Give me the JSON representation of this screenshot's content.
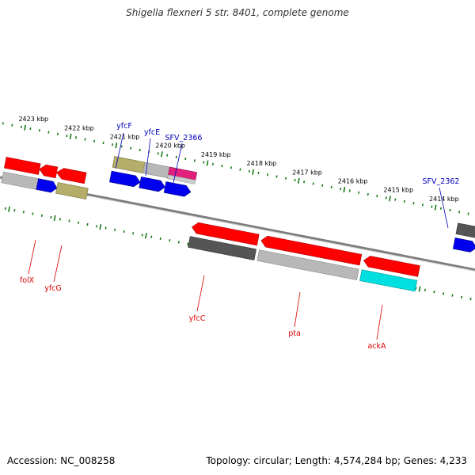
{
  "header": {
    "title": "Shigella flexneri 5 str. 8401, complete genome"
  },
  "footer": {
    "accession": "Accession: NC_008258",
    "summary": "Topology: circular; Length: 4,574,284 bp; Genes: 4,233"
  },
  "ruler": {
    "labels": [
      "2423 kbp",
      "2422 kbp",
      "2421 kbp",
      "2420 kbp",
      "2419 kbp",
      "2418 kbp",
      "2417 kbp",
      "2416 kbp",
      "2415 kbp",
      "2414 kbp"
    ]
  },
  "colors": {
    "backbone": "#808080",
    "ruler": "#1a7a1a",
    "red": "#ff0000",
    "dark_gray": "#555555",
    "light_gray": "#b0b0b0",
    "blue": "#0000ee",
    "olive": "#b5ad6a",
    "magenta": "#e0207a",
    "cyan": "#00e0e0",
    "label_blue": "#0000bb",
    "label_red": "#dd0000"
  },
  "gene_labels": {
    "folX": "folX",
    "yfcG": "yfcG",
    "yfcF": "yfcF",
    "yfcE": "yfcE",
    "SFV_2366": "SFV_2366",
    "yfcC": "yfcC",
    "pta": "pta",
    "ackA": "ackA",
    "SFV_2362": "SFV_2362"
  }
}
